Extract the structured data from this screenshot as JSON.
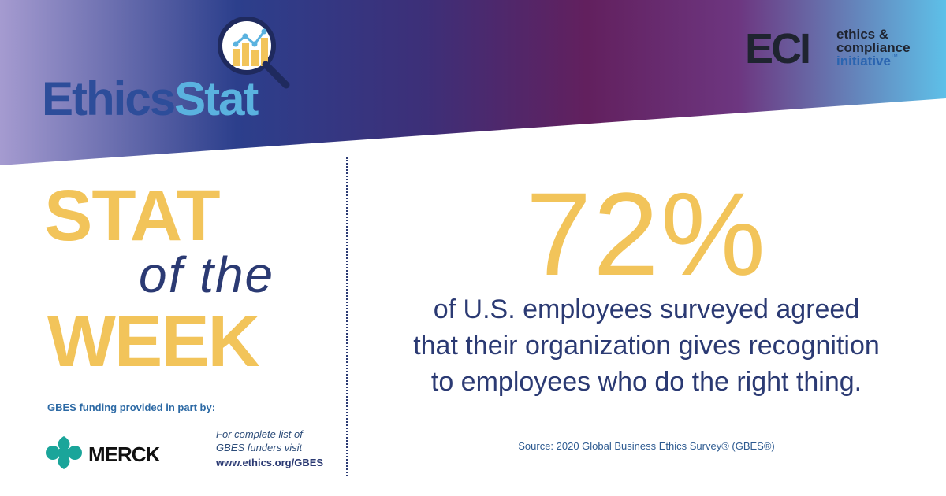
{
  "header": {
    "logo_left": {
      "part1": "Ethics",
      "part2": "Stat"
    },
    "logo_right": {
      "letters": "ECI",
      "line1": "ethics &",
      "line2": "compliance",
      "line3": "initiative",
      "tm": "TM"
    }
  },
  "left_panel": {
    "stat_word": "STAT",
    "of_the": "of the",
    "week_word": "WEEK",
    "funding_label": "GBES funding provided in part by:",
    "sponsor_name": "MERCK",
    "funders_note_line1": "For complete list of",
    "funders_note_line2": "GBES funders visit",
    "funders_url": "www.ethics.org/GBES"
  },
  "right_panel": {
    "big_stat": "72%",
    "description_line1": "of U.S. employees surveyed agreed",
    "description_line2": "that their organization gives recognition",
    "description_line3": "to employees who do the right thing.",
    "source": "Source: 2020 Global Business Ethics Survey® (GBES®)"
  },
  "colors": {
    "gold": "#f2c45a",
    "navy": "#2b3a73",
    "accent_blue": "#5ab2df",
    "banner_gradient": [
      "#a59bd0",
      "#2c3f8c",
      "#62205e",
      "#6d3680",
      "#5ec0e8"
    ]
  },
  "icons": {
    "magnifier": "magnifier-chart-icon",
    "sponsor": "merck-logo-icon"
  }
}
